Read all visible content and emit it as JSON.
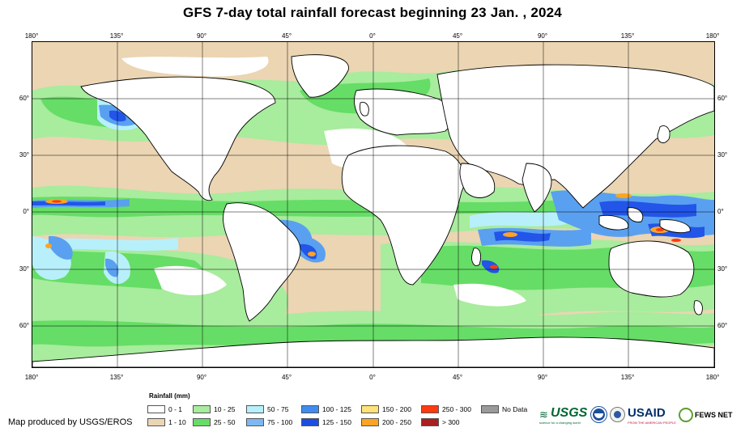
{
  "title": "GFS 7-day total rainfall forecast beginning 23 Jan. , 2024",
  "map": {
    "lon_ticks": [
      "180°",
      "135°",
      "90°",
      "45°",
      "0°",
      "45°",
      "90°",
      "135°",
      "180°"
    ],
    "lat_ticks": [
      "60°",
      "30°",
      "0°",
      "30°",
      "60°"
    ],
    "colors": {
      "ocean_dry": "#ebd5b3",
      "land": "#ffffff",
      "light_green": "#a8ec9d",
      "green": "#66dd66",
      "light_blue": "#b7f0fb",
      "blue": "#5aa0f0",
      "dark_blue": "#2255e8",
      "orange": "#ffa422",
      "red": "#ff3a10"
    }
  },
  "legend": {
    "title": "Rainfall (mm)",
    "items": [
      {
        "label": "0 - 1",
        "color": "#ffffff"
      },
      {
        "label": "1 - 10",
        "color": "#ebd5b3"
      },
      {
        "label": "10 - 25",
        "color": "#a8ec9d"
      },
      {
        "label": "25 - 50",
        "color": "#66dd66"
      },
      {
        "label": "50 - 75",
        "color": "#b7f0fb"
      },
      {
        "label": "75 - 100",
        "color": "#7fb7f2"
      },
      {
        "label": "100 - 125",
        "color": "#3f8cee"
      },
      {
        "label": "125 - 150",
        "color": "#1a4fe0"
      },
      {
        "label": "150 - 200",
        "color": "#ffe27a"
      },
      {
        "label": "200 - 250",
        "color": "#ffa422"
      },
      {
        "label": "250 - 300",
        "color": "#ff3a10"
      },
      {
        "label": "> 300",
        "color": "#aa1f1f"
      },
      {
        "label": "No Data",
        "color": "#9a9a9a"
      }
    ]
  },
  "credit": "Map produced by USGS/EROS",
  "logos": {
    "usgs": "USGS",
    "usgs_tagline": "science for a changing world",
    "usaid": "USAID",
    "usaid_tagline": "FROM THE AMERICAN PEOPLE",
    "fews": "FEWS NET"
  }
}
